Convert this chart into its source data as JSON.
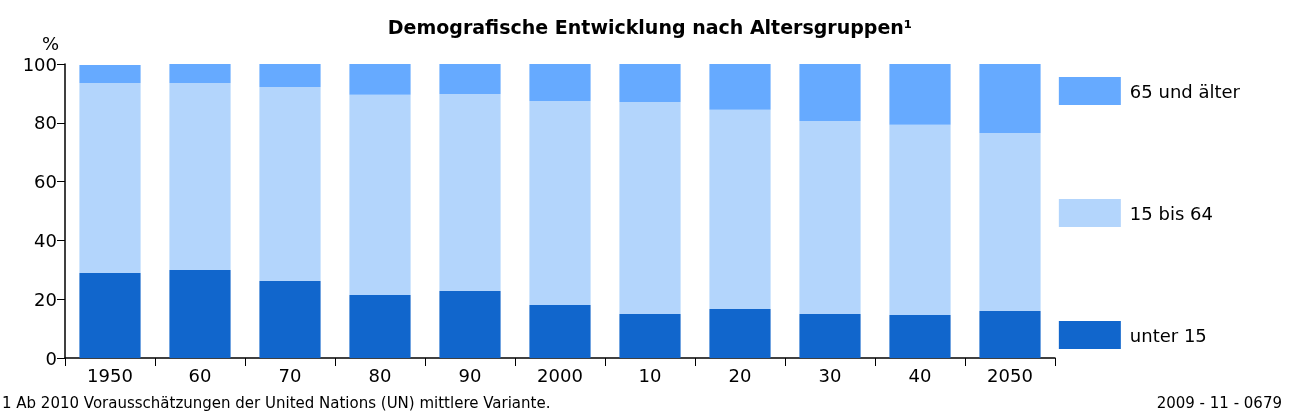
{
  "chart_data": {
    "type": "bar",
    "title": "Demografische Entwicklung nach Altersgruppen¹",
    "ylabel": "%",
    "categories": [
      "1950",
      "60",
      "70",
      "80",
      "90",
      "2000",
      "10",
      "20",
      "30",
      "40",
      "2050"
    ],
    "stacked": true,
    "series": [
      {
        "name": "unter 15",
        "color": "#1166cc",
        "values": [
          28.9,
          29.9,
          26.2,
          21.4,
          22.8,
          18.0,
          15.0,
          16.7,
          15.0,
          14.6,
          16.0
        ]
      },
      {
        "name": "15 bis 64",
        "color": "#b3d5fc",
        "values": [
          64.6,
          63.6,
          66.0,
          68.1,
          67.0,
          69.4,
          72.1,
          67.7,
          65.6,
          64.7,
          60.5
        ]
      },
      {
        "name": "65 und älter",
        "color": "#66aaff",
        "values": [
          6.2,
          6.5,
          7.8,
          10.5,
          10.2,
          12.6,
          12.9,
          15.6,
          19.4,
          20.7,
          23.5
        ]
      }
    ],
    "ylim": [
      0,
      100
    ],
    "yticks": [
      0,
      20,
      40,
      60,
      80,
      100
    ],
    "grid": false,
    "legend": "right",
    "annotations": [
      "1 Ab 2010 Vorausschätzungen der United Nations (UN) mittlere Variante.",
      "2009 - 11 - 0679"
    ]
  }
}
